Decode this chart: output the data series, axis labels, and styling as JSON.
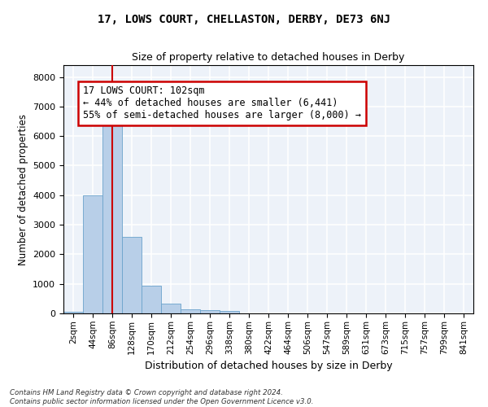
{
  "title_line1": "17, LOWS COURT, CHELLASTON, DERBY, DE73 6NJ",
  "title_line2": "Size of property relative to detached houses in Derby",
  "xlabel": "Distribution of detached houses by size in Derby",
  "ylabel": "Number of detached properties",
  "bin_labels": [
    "2sqm",
    "44sqm",
    "86sqm",
    "128sqm",
    "170sqm",
    "212sqm",
    "254sqm",
    "296sqm",
    "338sqm",
    "380sqm",
    "422sqm",
    "464sqm",
    "506sqm",
    "547sqm",
    "589sqm",
    "631sqm",
    "673sqm",
    "715sqm",
    "757sqm",
    "799sqm",
    "841sqm"
  ],
  "bar_values": [
    60,
    4000,
    6600,
    2600,
    950,
    330,
    140,
    120,
    70,
    0,
    0,
    0,
    0,
    0,
    0,
    0,
    0,
    0,
    0,
    0,
    0
  ],
  "bar_color": "#b8cfe8",
  "bar_edge_color": "#6ba3cc",
  "vline_index": 2,
  "vline_color": "#cc0000",
  "annotation_text": "17 LOWS COURT: 102sqm\n← 44% of detached houses are smaller (6,441)\n55% of semi-detached houses are larger (8,000) →",
  "annotation_box_facecolor": "white",
  "annotation_box_edgecolor": "#cc0000",
  "ylim": [
    0,
    8400
  ],
  "yticks": [
    0,
    1000,
    2000,
    3000,
    4000,
    5000,
    6000,
    7000,
    8000
  ],
  "bg_color": "#edf2f9",
  "grid_color": "white",
  "footnote_line1": "Contains HM Land Registry data © Crown copyright and database right 2024.",
  "footnote_line2": "Contains public sector information licensed under the Open Government Licence v3.0."
}
